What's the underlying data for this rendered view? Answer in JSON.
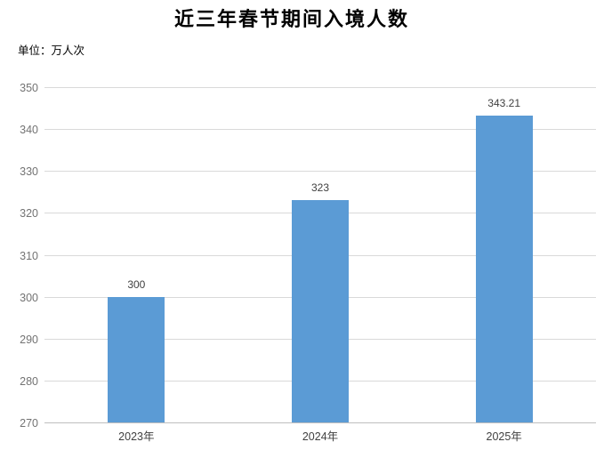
{
  "title": "近三年春节期间入境人数",
  "unit_label": "单位：万人次",
  "chart_data": {
    "type": "bar",
    "title": "近三年春节期间入境人数",
    "unit": "单位：万人次",
    "categories": [
      "2023年",
      "2024年",
      "2025年"
    ],
    "values": [
      300,
      323,
      343.21
    ],
    "data_labels": [
      "300",
      "323",
      "343.21"
    ],
    "ylim": [
      270,
      350
    ],
    "ytick_step": 10,
    "yticks": [
      270,
      280,
      290,
      300,
      310,
      320,
      330,
      340,
      350
    ],
    "grid": true,
    "legend_position": "none",
    "colors": {
      "bar": "#5B9BD5",
      "gridline": "#D9D9D9",
      "axis_line": "#BFBFBF",
      "ytick_label": "#737373",
      "xtick_label": "#404040",
      "data_label": "#404040",
      "title": "#000000",
      "unit_label": "#000000"
    }
  }
}
